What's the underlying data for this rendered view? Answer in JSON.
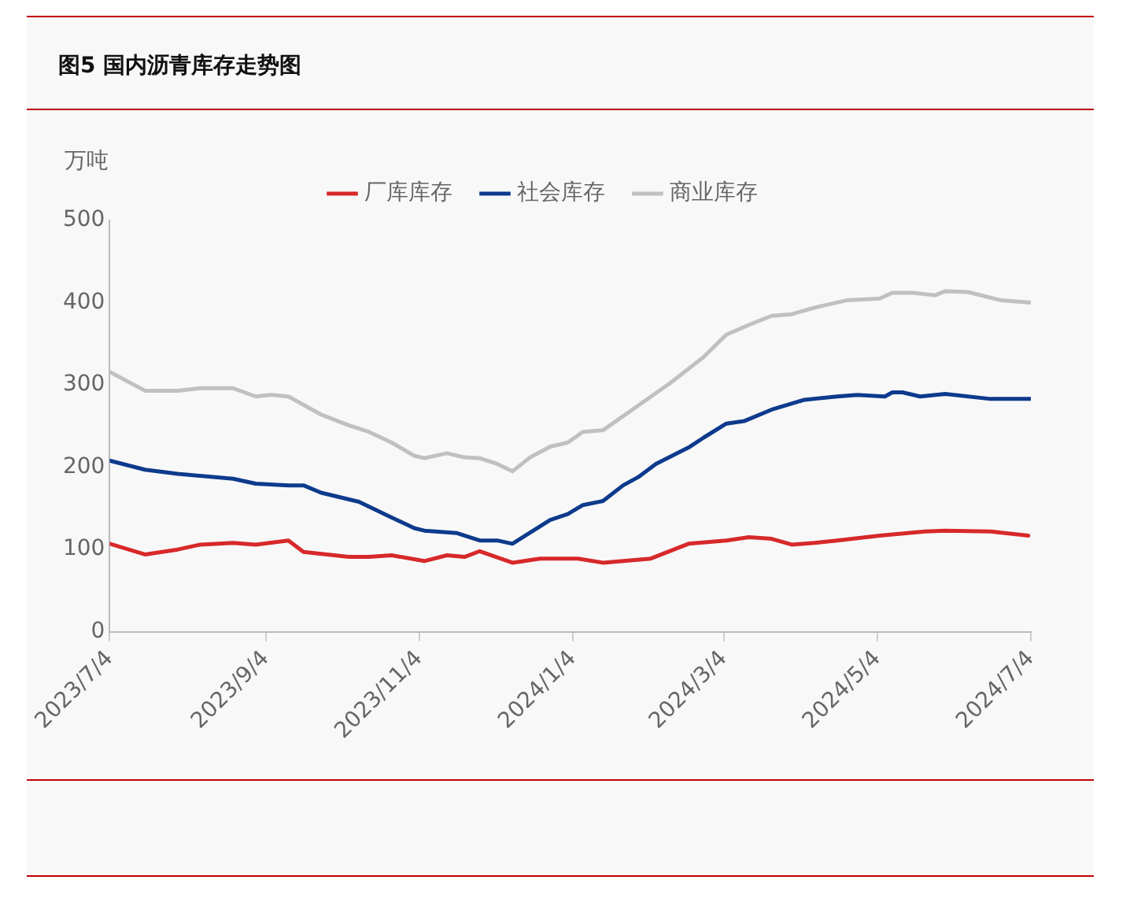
{
  "chart_data": {
    "type": "line",
    "title": "图5 国内沥青库存走势图",
    "ylabel": "万吨",
    "xlim": [
      "2023-07-04",
      "2024-07-04"
    ],
    "xticks": [
      {
        "value": "2023-07-04",
        "label": "2023/7/4"
      },
      {
        "value": "2023-09-04",
        "label": "2023/9/4"
      },
      {
        "value": "2023-11-04",
        "label": "2023/11/4"
      },
      {
        "value": "2024-01-04",
        "label": "2024/1/4"
      },
      {
        "value": "2024-03-04",
        "label": "2024/3/4"
      },
      {
        "value": "2024-05-04",
        "label": "2024/5/4"
      },
      {
        "value": "2024-07-04",
        "label": "2024/7/4"
      }
    ],
    "ylim": [
      0,
      500
    ],
    "yticks": [
      0,
      100,
      200,
      300,
      400,
      500
    ],
    "grid": false,
    "legend": "top",
    "marker": "none",
    "line_style": "solid",
    "series": [
      {
        "name": "厂库库存",
        "color": "#d7282a",
        "x": [
          "2023-07-04",
          "2023-07-18",
          "2023-07-31",
          "2023-08-09",
          "2023-08-22",
          "2023-08-31",
          "2023-09-13",
          "2023-09-19",
          "2023-10-07",
          "2023-10-15",
          "2023-10-24",
          "2023-11-06",
          "2023-11-15",
          "2023-11-22",
          "2023-11-28",
          "2023-12-11",
          "2023-12-22",
          "2024-01-06",
          "2024-01-16",
          "2024-02-04",
          "2024-02-19",
          "2024-03-05",
          "2024-03-14",
          "2024-03-23",
          "2024-03-31",
          "2024-04-09",
          "2024-04-18",
          "2024-05-05",
          "2024-05-23",
          "2024-05-31",
          "2024-06-18",
          "2024-07-03"
        ],
        "values": [
          107,
          94,
          100,
          106,
          108,
          106,
          111,
          97,
          91,
          91,
          93,
          86,
          93,
          91,
          98,
          84,
          89,
          89,
          84,
          89,
          107,
          111,
          115,
          113,
          106,
          108,
          111,
          117,
          122,
          123,
          122,
          117
        ]
      },
      {
        "name": "社会库存",
        "color": "#0d3a8c",
        "x": [
          "2023-07-04",
          "2023-07-18",
          "2023-07-31",
          "2023-08-22",
          "2023-08-31",
          "2023-09-13",
          "2023-09-19",
          "2023-09-26",
          "2023-10-11",
          "2023-10-24",
          "2023-11-02",
          "2023-11-06",
          "2023-11-19",
          "2023-11-28",
          "2023-12-05",
          "2023-12-11",
          "2023-12-26",
          "2024-01-02",
          "2024-01-08",
          "2024-01-16",
          "2024-01-24",
          "2024-01-30",
          "2024-02-06",
          "2024-02-19",
          "2024-02-25",
          "2024-03-05",
          "2024-03-12",
          "2024-03-23",
          "2024-04-05",
          "2024-04-18",
          "2024-04-26",
          "2024-05-07",
          "2024-05-10",
          "2024-05-14",
          "2024-05-21",
          "2024-05-31",
          "2024-06-18",
          "2024-07-04"
        ],
        "values": [
          208,
          197,
          192,
          186,
          180,
          178,
          178,
          169,
          158,
          139,
          126,
          123,
          120,
          111,
          111,
          107,
          136,
          143,
          154,
          159,
          178,
          188,
          204,
          224,
          236,
          253,
          256,
          270,
          282,
          286,
          288,
          286,
          291,
          291,
          286,
          289,
          283,
          283
        ]
      },
      {
        "name": "商业库存",
        "color": "#c0c0c0",
        "x": [
          "2023-07-04",
          "2023-07-18",
          "2023-07-31",
          "2023-08-09",
          "2023-08-22",
          "2023-08-31",
          "2023-09-06",
          "2023-09-13",
          "2023-09-26",
          "2023-10-07",
          "2023-10-15",
          "2023-10-24",
          "2023-11-02",
          "2023-11-06",
          "2023-11-15",
          "2023-11-22",
          "2023-11-28",
          "2023-12-05",
          "2023-12-11",
          "2023-12-18",
          "2023-12-26",
          "2024-01-02",
          "2024-01-08",
          "2024-01-16",
          "2024-01-30",
          "2024-02-12",
          "2024-02-25",
          "2024-03-05",
          "2024-03-14",
          "2024-03-23",
          "2024-03-31",
          "2024-04-09",
          "2024-04-22",
          "2024-05-05",
          "2024-05-10",
          "2024-05-18",
          "2024-05-27",
          "2024-05-31",
          "2024-06-09",
          "2024-06-22",
          "2024-07-04"
        ],
        "values": [
          316,
          293,
          293,
          296,
          296,
          286,
          288,
          286,
          264,
          251,
          243,
          230,
          214,
          211,
          217,
          212,
          211,
          204,
          195,
          212,
          225,
          230,
          243,
          245,
          275,
          303,
          334,
          361,
          373,
          384,
          386,
          394,
          403,
          405,
          412,
          412,
          409,
          414,
          413,
          403,
          400
        ]
      }
    ]
  }
}
